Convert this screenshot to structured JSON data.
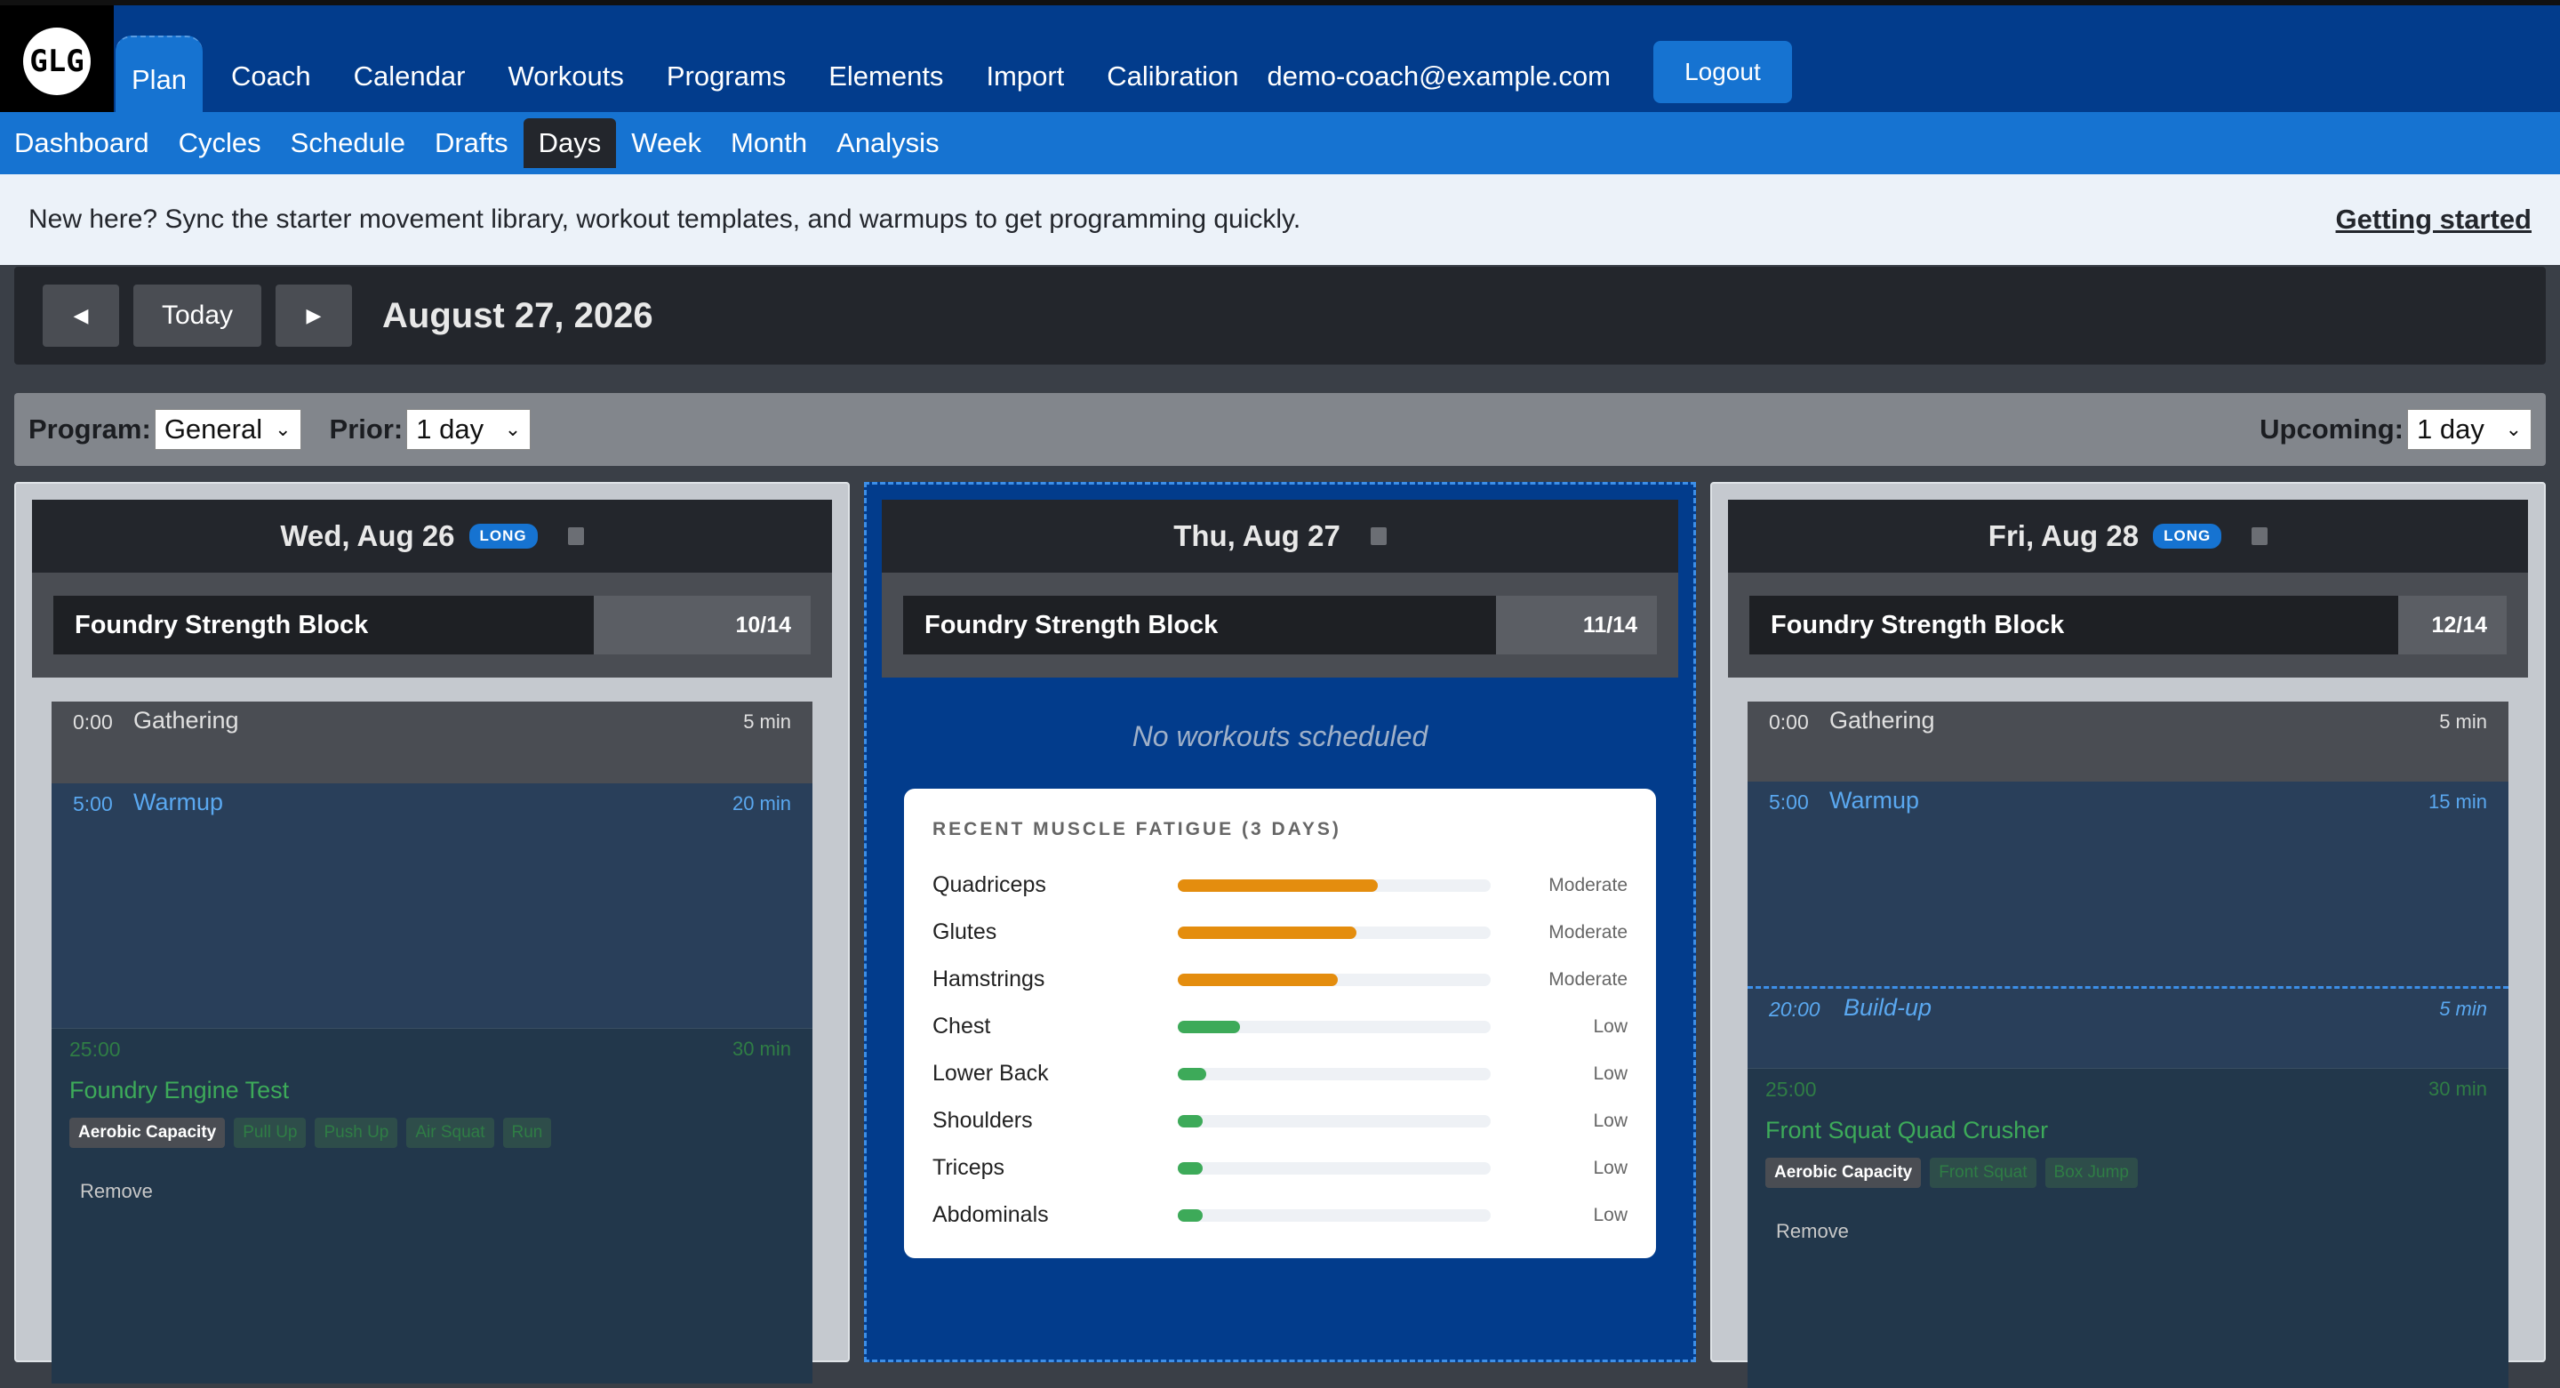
{
  "topnav": {
    "logo_text": "GLG",
    "items": [
      "Plan",
      "Coach",
      "Calendar",
      "Workouts",
      "Programs",
      "Elements",
      "Import",
      "Calibration"
    ],
    "email": "demo-coach@example.com",
    "logout": "Logout"
  },
  "subnav": {
    "items": [
      "Dashboard",
      "Cycles",
      "Schedule",
      "Drafts",
      "Days",
      "Week",
      "Month",
      "Analysis"
    ],
    "active": "Days"
  },
  "banner": {
    "text": "New here? Sync the starter movement library, workout templates, and warmups to get programming quickly.",
    "link": "Getting started"
  },
  "datebar": {
    "prev": "◀",
    "today": "Today",
    "next": "▶",
    "title": "August 27, 2026"
  },
  "filters": {
    "program_label": "Program:",
    "program_value": "General",
    "prior_label": "Prior:",
    "prior_value": "1 day",
    "upcoming_label": "Upcoming:",
    "upcoming_value": "1 day"
  },
  "days": [
    {
      "date": "Wed, Aug 26",
      "badge": "LONG",
      "program": "Foundry Strength Block",
      "count": "10/14",
      "progress": 0.714,
      "gathering": {
        "time": "0:00",
        "name": "Gathering",
        "dur": "5 min"
      },
      "warmup": {
        "time": "5:00",
        "name": "Warmup",
        "dur": "20 min"
      },
      "workout": {
        "time": "25:00",
        "dur": "30 min",
        "name": "Foundry Engine Test",
        "tags": [
          "Aerobic Capacity",
          "Pull Up",
          "Push Up",
          "Air Squat",
          "Run"
        ],
        "remove": "Remove"
      }
    },
    {
      "date": "Thu, Aug 27",
      "program": "Foundry Strength Block",
      "count": "11/14",
      "progress": 0.786,
      "empty": "No workouts scheduled"
    },
    {
      "date": "Fri, Aug 28",
      "badge": "LONG",
      "program": "Foundry Strength Block",
      "count": "12/14",
      "progress": 0.857,
      "gathering": {
        "time": "0:00",
        "name": "Gathering",
        "dur": "5 min"
      },
      "warmup": {
        "time": "5:00",
        "name": "Warmup",
        "dur": "15 min"
      },
      "buildup": {
        "time": "20:00",
        "name": "Build-up",
        "dur": "5 min"
      },
      "workout": {
        "time": "25:00",
        "dur": "30 min",
        "name": "Front Squat Quad Crusher",
        "tags": [
          "Aerobic Capacity",
          "Front Squat",
          "Box Jump"
        ],
        "remove": "Remove"
      }
    }
  ],
  "fatigue": {
    "title": "RECENT MUSCLE FATIGUE (3 DAYS)",
    "rows": [
      {
        "muscle": "Quadriceps",
        "level": "Moderate",
        "value": 0.64,
        "color": "#e48d0e"
      },
      {
        "muscle": "Glutes",
        "level": "Moderate",
        "value": 0.57,
        "color": "#e48d0e"
      },
      {
        "muscle": "Hamstrings",
        "level": "Moderate",
        "value": 0.51,
        "color": "#e48d0e"
      },
      {
        "muscle": "Chest",
        "level": "Low",
        "value": 0.2,
        "color": "#3daa59"
      },
      {
        "muscle": "Lower Back",
        "level": "Low",
        "value": 0.09,
        "color": "#3daa59"
      },
      {
        "muscle": "Shoulders",
        "level": "Low",
        "value": 0.08,
        "color": "#3daa59"
      },
      {
        "muscle": "Triceps",
        "level": "Low",
        "value": 0.08,
        "color": "#3daa59"
      },
      {
        "muscle": "Abdominals",
        "level": "Low",
        "value": 0.08,
        "color": "#3daa59"
      }
    ]
  }
}
